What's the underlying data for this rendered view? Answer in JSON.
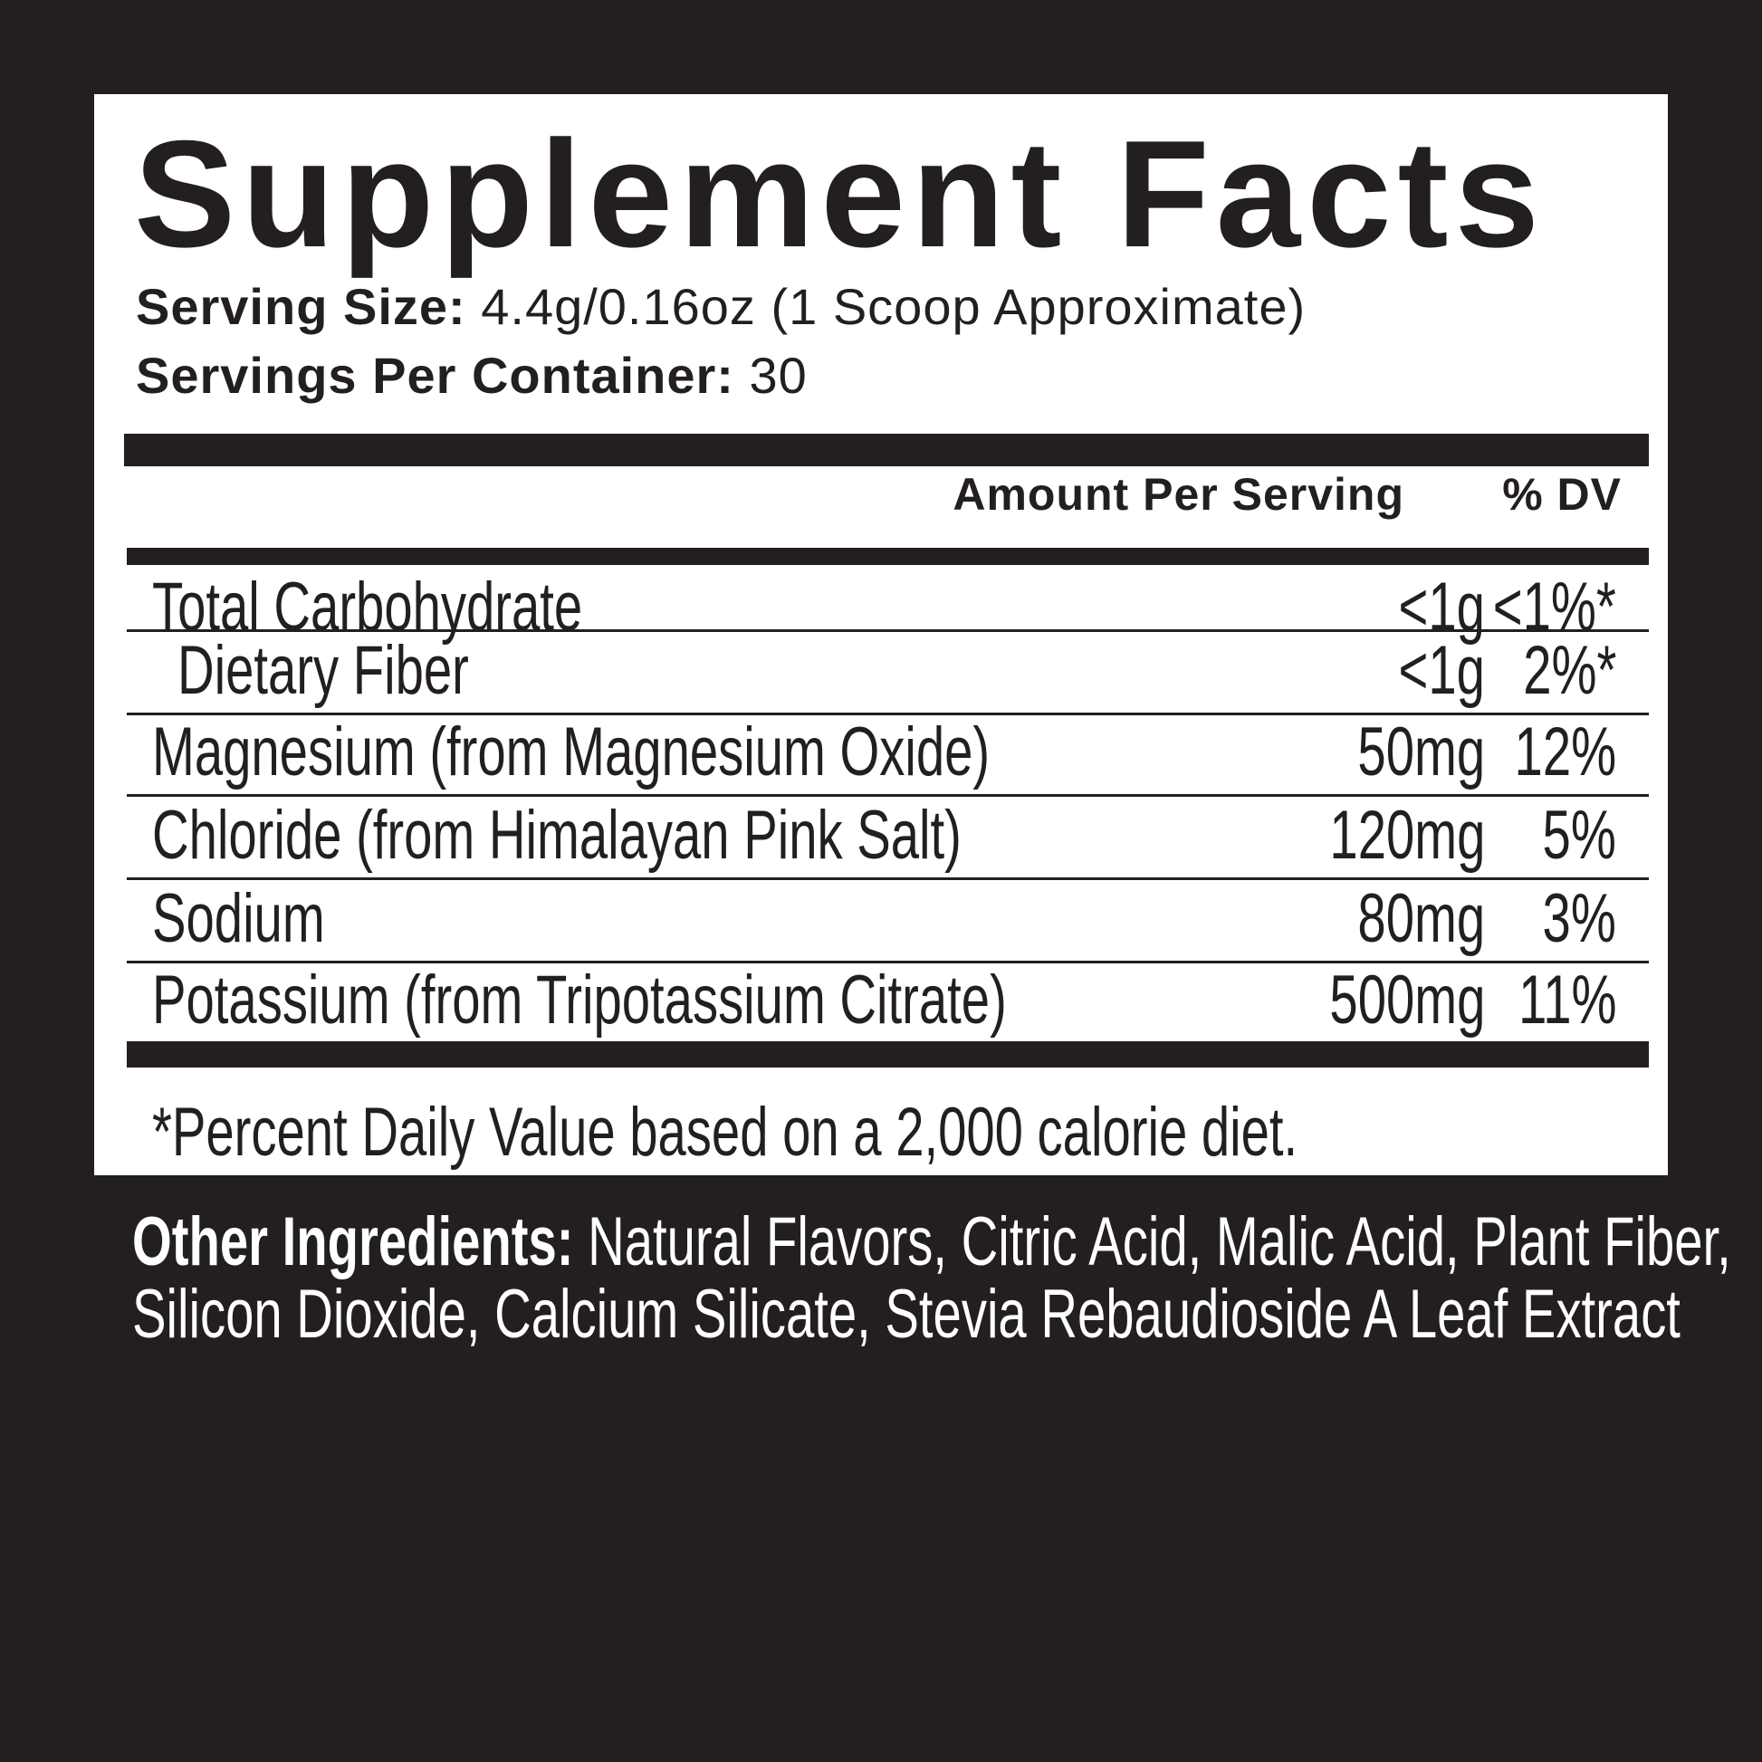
{
  "title": "Supplement Facts",
  "serving_size": {
    "label": "Serving Size:",
    "value": "4.4g/0.16oz (1 Scoop Approximate)"
  },
  "servings_per_container": {
    "label": "Servings Per Container:",
    "value": "30"
  },
  "columns": {
    "amount": "Amount Per Serving",
    "dv": "% DV"
  },
  "rows": [
    {
      "name": "Total Carbohydrate",
      "amount": "<1g",
      "dv": "<1%*"
    },
    {
      "name": "Dietary Fiber",
      "amount": "<1g",
      "dv": "2%*"
    },
    {
      "name": "Magnesium (from Magnesium Oxide)",
      "amount": "50mg",
      "dv": "12%"
    },
    {
      "name": "Chloride (from Himalayan Pink Salt)",
      "amount": "120mg",
      "dv": "5%"
    },
    {
      "name": "Sodium",
      "amount": "80mg",
      "dv": "3%"
    },
    {
      "name": "Potassium (from Tripotassium Citrate)",
      "amount": "500mg",
      "dv": "11%"
    }
  ],
  "footnote": "*Percent Daily Value based on a 2,000 calorie diet.",
  "other_ingredients": {
    "label": "Other Ingredients:",
    "line1": "Natural Flavors, Citric Acid, Malic Acid, Plant Fiber,",
    "line2": "Silicon Dioxide, Calcium Silicate, Stevia Rebaudioside A Leaf Extract"
  },
  "colors": {
    "background": "#231f20",
    "panel": "#ffffff",
    "ink": "#231f20"
  }
}
